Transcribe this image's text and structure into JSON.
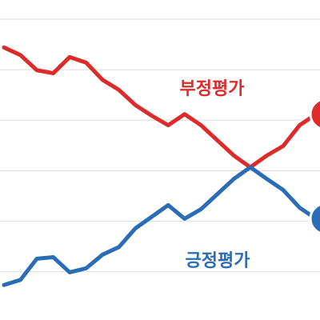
{
  "chart_data": {
    "type": "line",
    "categories": [
      null,
      null,
      null,
      null,
      null,
      null,
      null,
      null,
      null,
      null,
      null,
      null,
      null,
      null,
      null,
      null,
      null,
      null,
      null,
      null
    ],
    "series": [
      {
        "name": "부정평가",
        "color": "#dd2a2a",
        "values": [
          69.4,
          67.9,
          64.9,
          64.3,
          67.5,
          66.4,
          63.0,
          61.0,
          58.0,
          55.9,
          54.0,
          56.2,
          54.0,
          51.0,
          48.0,
          45.7,
          48.0,
          49.9,
          54.0,
          56.2
        ]
      },
      {
        "name": "긍정평가",
        "color": "#2a6cb6",
        "values": [
          22.4,
          23.4,
          27.6,
          27.9,
          24.9,
          25.7,
          28.4,
          29.9,
          33.6,
          35.9,
          38.2,
          35.5,
          37.4,
          40.4,
          43.4,
          45.7,
          43.4,
          41.2,
          37.7,
          35.5
        ]
      }
    ],
    "ylim": [
      18,
      78
    ],
    "yticks": [
      25,
      35,
      45,
      55,
      65,
      75
    ],
    "grid": true
  }
}
